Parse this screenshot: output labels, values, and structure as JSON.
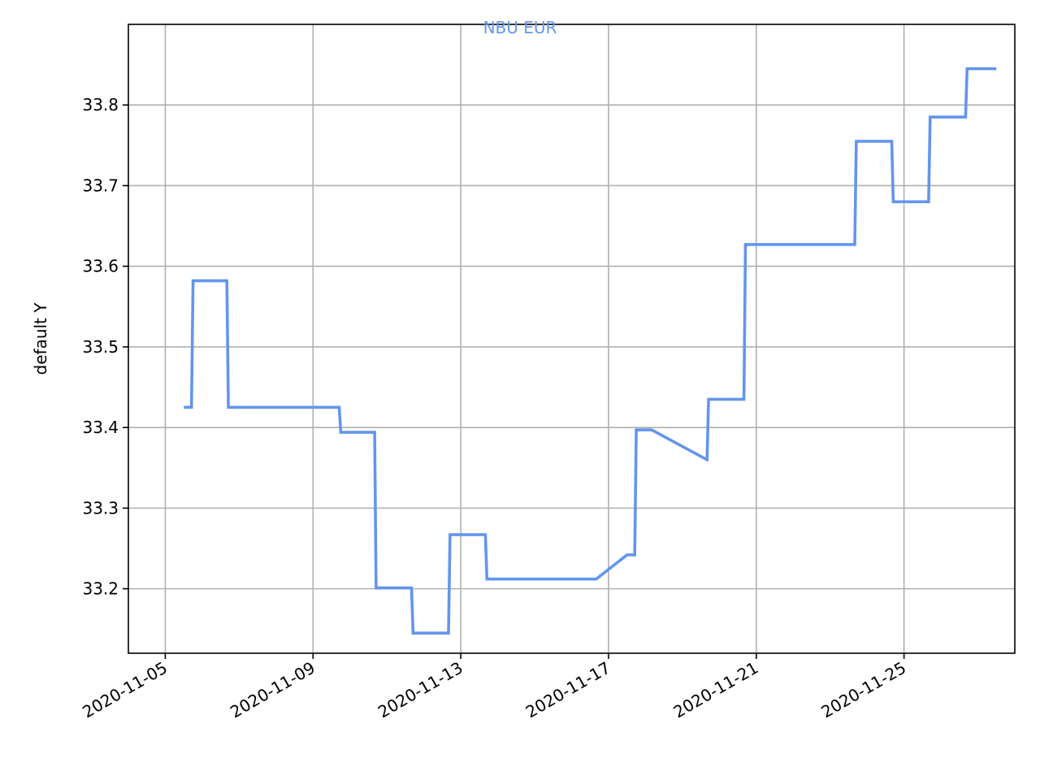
{
  "chart_data": {
    "type": "line",
    "title": "NBU EUR",
    "title_color": "#6495ED",
    "xlabel": "",
    "ylabel": "default Y",
    "grid": true,
    "x_ticks": [
      "2020-11-05",
      "2020-11-09",
      "2020-11-13",
      "2020-11-17",
      "2020-11-21",
      "2020-11-25"
    ],
    "y_ticks": [
      "33.2",
      "33.3",
      "33.4",
      "33.5",
      "33.6",
      "33.7",
      "33.8"
    ],
    "xlim": [
      "2020-11-04T00:00",
      "2020-11-28T00:00"
    ],
    "ylim": [
      33.12,
      33.9
    ],
    "series": [
      {
        "color": "#6495ED",
        "points": [
          {
            "x": "2020-11-05T12:00",
            "y": 33.425
          },
          {
            "x": "2020-11-05T17:00",
            "y": 33.425
          },
          {
            "x": "2020-11-05T18:00",
            "y": 33.582
          },
          {
            "x": "2020-11-06T16:00",
            "y": 33.582
          },
          {
            "x": "2020-11-06T17:00",
            "y": 33.425
          },
          {
            "x": "2020-11-09T17:00",
            "y": 33.425
          },
          {
            "x": "2020-11-09T18:00",
            "y": 33.394
          },
          {
            "x": "2020-11-10T16:00",
            "y": 33.394
          },
          {
            "x": "2020-11-10T17:00",
            "y": 33.201
          },
          {
            "x": "2020-11-11T16:00",
            "y": 33.201
          },
          {
            "x": "2020-11-11T17:00",
            "y": 33.145
          },
          {
            "x": "2020-11-12T16:00",
            "y": 33.145
          },
          {
            "x": "2020-11-12T17:00",
            "y": 33.267
          },
          {
            "x": "2020-11-13T16:00",
            "y": 33.267
          },
          {
            "x": "2020-11-13T17:00",
            "y": 33.212
          },
          {
            "x": "2020-11-16T16:00",
            "y": 33.212
          },
          {
            "x": "2020-11-17T12:00",
            "y": 33.242
          },
          {
            "x": "2020-11-17T17:00",
            "y": 33.242
          },
          {
            "x": "2020-11-17T18:00",
            "y": 33.397
          },
          {
            "x": "2020-11-18T04:00",
            "y": 33.397
          },
          {
            "x": "2020-11-19T16:00",
            "y": 33.36
          },
          {
            "x": "2020-11-19T17:00",
            "y": 33.435
          },
          {
            "x": "2020-11-20T16:00",
            "y": 33.435
          },
          {
            "x": "2020-11-20T17:00",
            "y": 33.627
          },
          {
            "x": "2020-11-23T16:00",
            "y": 33.627
          },
          {
            "x": "2020-11-23T17:00",
            "y": 33.755
          },
          {
            "x": "2020-11-24T16:00",
            "y": 33.755
          },
          {
            "x": "2020-11-24T17:00",
            "y": 33.68
          },
          {
            "x": "2020-11-25T16:00",
            "y": 33.68
          },
          {
            "x": "2020-11-25T17:00",
            "y": 33.785
          },
          {
            "x": "2020-11-26T16:00",
            "y": 33.785
          },
          {
            "x": "2020-11-26T17:00",
            "y": 33.845
          },
          {
            "x": "2020-11-27T12:00",
            "y": 33.845
          }
        ]
      }
    ]
  }
}
